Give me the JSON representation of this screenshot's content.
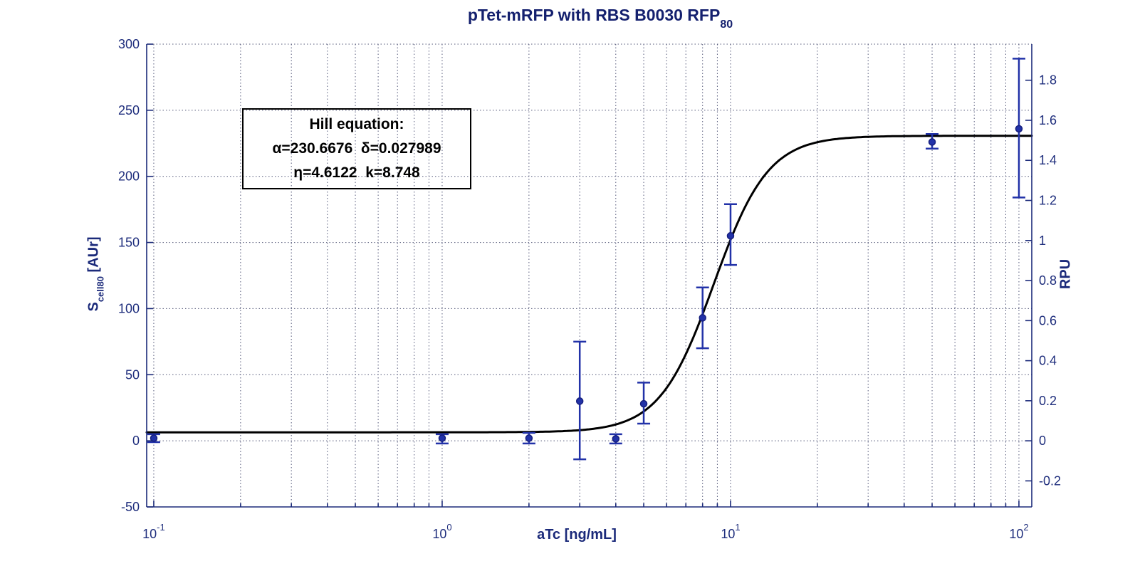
{
  "title": {
    "main": "pTet-mRFP with RBS B0030 RFP",
    "sub": "80"
  },
  "hill_box": {
    "line1": "Hill equation:",
    "line2": "α=230.6676  δ=0.027989",
    "line3": "η=4.6122  k=8.748"
  },
  "axes": {
    "x_label": "aTc [ng/mL]",
    "y_left": {
      "main": "S",
      "sub": "cell80",
      "rest": " [AUr]"
    },
    "y_right_label": "RPU"
  },
  "colors": {
    "axis": "#1b2a7a",
    "tick_text": "#1f2e7d",
    "title_text": "#14206e",
    "data": "#2232a8",
    "data_stroke": "#161f7e",
    "curve": "#000000",
    "grid": "#55597a"
  },
  "chart_data": {
    "type": "scatter",
    "title": "pTet-mRFP with RBS B0030 RFP80",
    "xlabel": "aTc [ng/mL]",
    "ylabel_left": "Scell80 [AUr]",
    "ylabel_right": "RPU",
    "x_scale": "log",
    "xlim": [
      0.0945,
      110.8
    ],
    "ylim_left": [
      -50,
      300
    ],
    "ylim_right": [
      -0.33,
      1.98
    ],
    "aur_per_rpu": 151.5,
    "grid": true,
    "legend": "none",
    "x_tick_exponents": [
      -1,
      0,
      1,
      2
    ],
    "y_left_ticks": [
      -50,
      0,
      50,
      100,
      150,
      200,
      250,
      300
    ],
    "y_right_ticks": [
      -0.2,
      0,
      0.2,
      0.4,
      0.6,
      0.8,
      1,
      1.2,
      1.4,
      1.6,
      1.8
    ],
    "points": [
      {
        "x": 0.1,
        "y": 2,
        "lo": -1,
        "hi": 5
      },
      {
        "x": 1,
        "y": 2,
        "lo": -2,
        "hi": 5
      },
      {
        "x": 2,
        "y": 2,
        "lo": -2,
        "hi": 6
      },
      {
        "x": 3,
        "y": 30,
        "lo": -14,
        "hi": 75
      },
      {
        "x": 4,
        "y": 1.5,
        "lo": -2,
        "hi": 5
      },
      {
        "x": 5,
        "y": 28,
        "lo": 13,
        "hi": 44
      },
      {
        "x": 8,
        "y": 93,
        "lo": 70,
        "hi": 116
      },
      {
        "x": 10,
        "y": 155,
        "lo": 133,
        "hi": 179
      },
      {
        "x": 50,
        "y": 226,
        "lo": 221,
        "hi": 232
      },
      {
        "x": 100,
        "y": 236,
        "lo": 184,
        "hi": 289
      }
    ],
    "fit": {
      "type": "hill",
      "alpha": 230.6676,
      "delta": 0.027989,
      "eta": 4.6122,
      "k": 8.748,
      "formula": "S = alpha*(delta + (1-delta)*x^eta/(k^eta + x^eta))"
    }
  }
}
